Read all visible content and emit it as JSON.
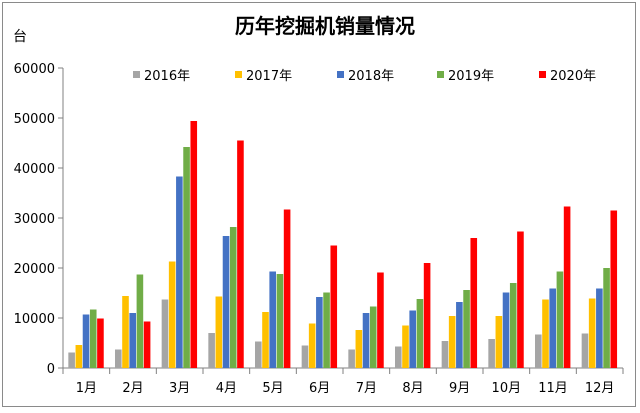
{
  "chart_data": {
    "type": "bar",
    "title": "历年挖掘机销量情况",
    "ylabel": "台",
    "xlabel": "",
    "ylim": [
      0,
      60000
    ],
    "yticks": [
      0,
      10000,
      20000,
      30000,
      40000,
      50000,
      60000
    ],
    "grid": false,
    "legend_position": "top-right",
    "categories": [
      "1月",
      "2月",
      "3月",
      "4月",
      "5月",
      "6月",
      "7月",
      "8月",
      "9月",
      "10月",
      "11月",
      "12月"
    ],
    "series": [
      {
        "name": "2016年",
        "color": "#a5a5a5",
        "values": [
          3100,
          3700,
          13700,
          7000,
          5300,
          4500,
          3700,
          4300,
          5400,
          5800,
          6700,
          6900
        ]
      },
      {
        "name": "2017年",
        "color": "#ffc000",
        "values": [
          4600,
          14400,
          21300,
          14300,
          11200,
          8900,
          7600,
          8500,
          10400,
          10400,
          13700,
          13900
        ]
      },
      {
        "name": "2018年",
        "color": "#4472c4",
        "values": [
          10700,
          11000,
          38300,
          26400,
          19300,
          14200,
          11000,
          11500,
          13200,
          15100,
          15900,
          15900
        ]
      },
      {
        "name": "2019年",
        "color": "#70ad47",
        "values": [
          11700,
          18700,
          44200,
          28200,
          18800,
          15100,
          12300,
          13800,
          15600,
          17000,
          19300,
          20000
        ]
      },
      {
        "name": "2020年",
        "color": "#ff0000",
        "values": [
          9900,
          9300,
          49400,
          45500,
          31700,
          24500,
          19100,
          21000,
          26000,
          27300,
          32300,
          31500
        ]
      }
    ]
  }
}
